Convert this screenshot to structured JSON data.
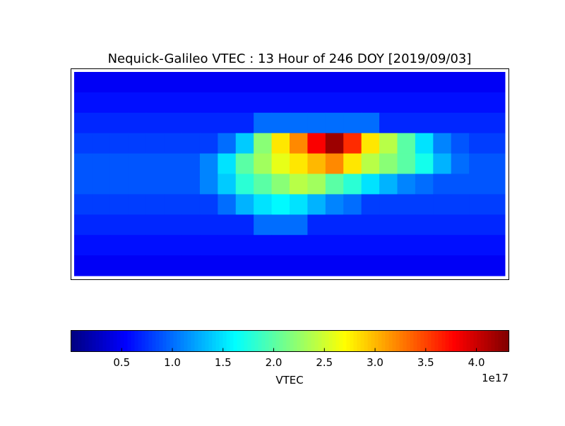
{
  "chart_data": {
    "type": "heatmap",
    "title": "Nequick-Galileo VTEC : 13 Hour of 246 DOY [2019/09/03]",
    "xlim": [
      -180,
      180
    ],
    "ylim": [
      -90,
      90
    ],
    "values": [
      [
        0.5,
        0.5,
        0.5,
        0.5,
        0.5,
        0.5,
        0.5,
        0.5,
        0.5,
        0.5,
        0.5,
        0.5,
        0.5,
        0.5,
        0.5,
        0.5,
        0.5,
        0.5,
        0.5,
        0.5,
        0.5,
        0.5,
        0.5,
        0.5
      ],
      [
        0.6,
        0.6,
        0.6,
        0.6,
        0.6,
        0.6,
        0.6,
        0.6,
        0.6,
        0.6,
        0.6,
        0.6,
        0.6,
        0.6,
        0.6,
        0.6,
        0.6,
        0.6,
        0.6,
        0.6,
        0.6,
        0.6,
        0.6,
        0.6
      ],
      [
        0.7,
        0.7,
        0.7,
        0.7,
        0.7,
        0.7,
        0.7,
        0.7,
        0.7,
        0.7,
        1.0,
        1.0,
        1.0,
        1.0,
        1.0,
        1.0,
        1.0,
        0.7,
        0.7,
        0.7,
        0.7,
        0.7,
        0.7,
        0.7
      ],
      [
        0.8,
        0.8,
        0.8,
        0.8,
        0.8,
        0.8,
        0.8,
        0.8,
        1.0,
        1.4,
        2.2,
        2.8,
        3.2,
        3.8,
        4.2,
        3.6,
        2.8,
        2.4,
        2.0,
        1.5,
        1.1,
        0.9,
        0.8,
        0.8
      ],
      [
        0.9,
        0.9,
        0.9,
        0.9,
        0.9,
        0.9,
        0.9,
        1.1,
        1.5,
        2.0,
        2.3,
        2.6,
        2.8,
        3.0,
        3.2,
        2.8,
        2.4,
        2.2,
        2.0,
        1.7,
        1.3,
        1.0,
        0.9,
        0.9
      ],
      [
        0.9,
        0.9,
        0.9,
        0.9,
        0.9,
        0.9,
        0.9,
        1.1,
        1.4,
        1.8,
        2.0,
        2.2,
        2.4,
        2.3,
        2.0,
        1.8,
        1.5,
        1.3,
        1.1,
        1.0,
        0.9,
        0.9,
        0.9,
        0.9
      ],
      [
        0.8,
        0.8,
        0.8,
        0.8,
        0.8,
        0.8,
        0.8,
        0.8,
        1.0,
        1.3,
        1.5,
        1.6,
        1.5,
        1.3,
        1.1,
        1.0,
        0.8,
        0.8,
        0.8,
        0.8,
        0.8,
        0.8,
        0.8,
        0.8
      ],
      [
        0.7,
        0.7,
        0.7,
        0.7,
        0.7,
        0.7,
        0.7,
        0.7,
        0.7,
        0.7,
        1.0,
        1.0,
        1.0,
        0.7,
        0.7,
        0.7,
        0.7,
        0.7,
        0.7,
        0.7,
        0.7,
        0.7,
        0.7,
        0.7
      ],
      [
        0.6,
        0.6,
        0.6,
        0.6,
        0.6,
        0.6,
        0.6,
        0.6,
        0.6,
        0.6,
        0.6,
        0.6,
        0.6,
        0.6,
        0.6,
        0.6,
        0.6,
        0.6,
        0.6,
        0.6,
        0.6,
        0.6,
        0.6,
        0.6
      ],
      [
        0.5,
        0.5,
        0.5,
        0.5,
        0.5,
        0.5,
        0.5,
        0.5,
        0.5,
        0.5,
        0.5,
        0.5,
        0.5,
        0.5,
        0.5,
        0.5,
        0.5,
        0.5,
        0.5,
        0.5,
        0.5,
        0.5,
        0.5,
        0.5
      ]
    ],
    "colormap": "jet",
    "colorbar": {
      "label": "VTEC",
      "offset_label": "1e17",
      "lim": [
        0,
        4.32
      ],
      "ticks": [
        0.5,
        {
          "value": 1,
          "label": "1.0"
        },
        1.5,
        {
          "value": 2,
          "label": "2.0"
        },
        2.5,
        {
          "value": 3,
          "label": "3.0"
        },
        3.5,
        {
          "value": 4,
          "label": "4.0"
        }
      ]
    }
  }
}
